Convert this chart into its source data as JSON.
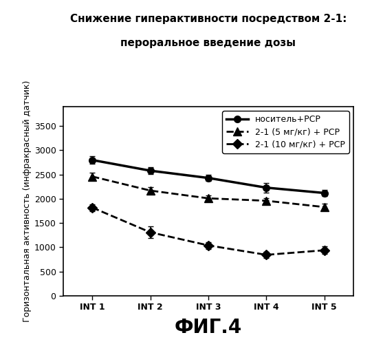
{
  "title_line1": "Снижение гиперактивности посредством 2-1:",
  "title_line2": "пероральное введение дозы",
  "fig_label": "ФИГ.4",
  "ylabel": "Горизонтальная активность (инфракрасный датчик)",
  "x_labels": [
    "INT 1",
    "INT 2",
    "INT 3",
    "INT 4",
    "INT 5"
  ],
  "x_values": [
    1,
    2,
    3,
    4,
    5
  ],
  "series": [
    {
      "label": "носитель+PCP",
      "y": [
        2800,
        2580,
        2430,
        2230,
        2120
      ],
      "yerr": [
        80,
        70,
        60,
        100,
        70
      ],
      "color": "#000000",
      "linestyle": "-",
      "marker": "o",
      "linewidth": 2.5,
      "markersize": 7
    },
    {
      "label": "2-1 (5 мг/кг) + PCP",
      "y": [
        2460,
        2170,
        2010,
        1960,
        1830
      ],
      "yerr": [
        80,
        70,
        60,
        60,
        70
      ],
      "color": "#000000",
      "linestyle": "--",
      "marker": "^",
      "linewidth": 2.0,
      "markersize": 8
    },
    {
      "label": "2-1 (10 мг/кг) + PCP",
      "y": [
        1820,
        1310,
        1040,
        845,
        940
      ],
      "yerr": [
        70,
        120,
        70,
        60,
        80
      ],
      "color": "#000000",
      "linestyle": "--",
      "marker": "D",
      "linewidth": 2.0,
      "markersize": 7
    }
  ],
  "ylim": [
    0,
    3900
  ],
  "yticks": [
    0,
    500,
    1000,
    1500,
    2000,
    2500,
    3000,
    3500
  ],
  "background_color": "#ffffff",
  "title_fontsize": 11,
  "ylabel_fontsize": 9,
  "tick_fontsize": 9,
  "legend_fontsize": 9,
  "fig_label_fontsize": 20
}
